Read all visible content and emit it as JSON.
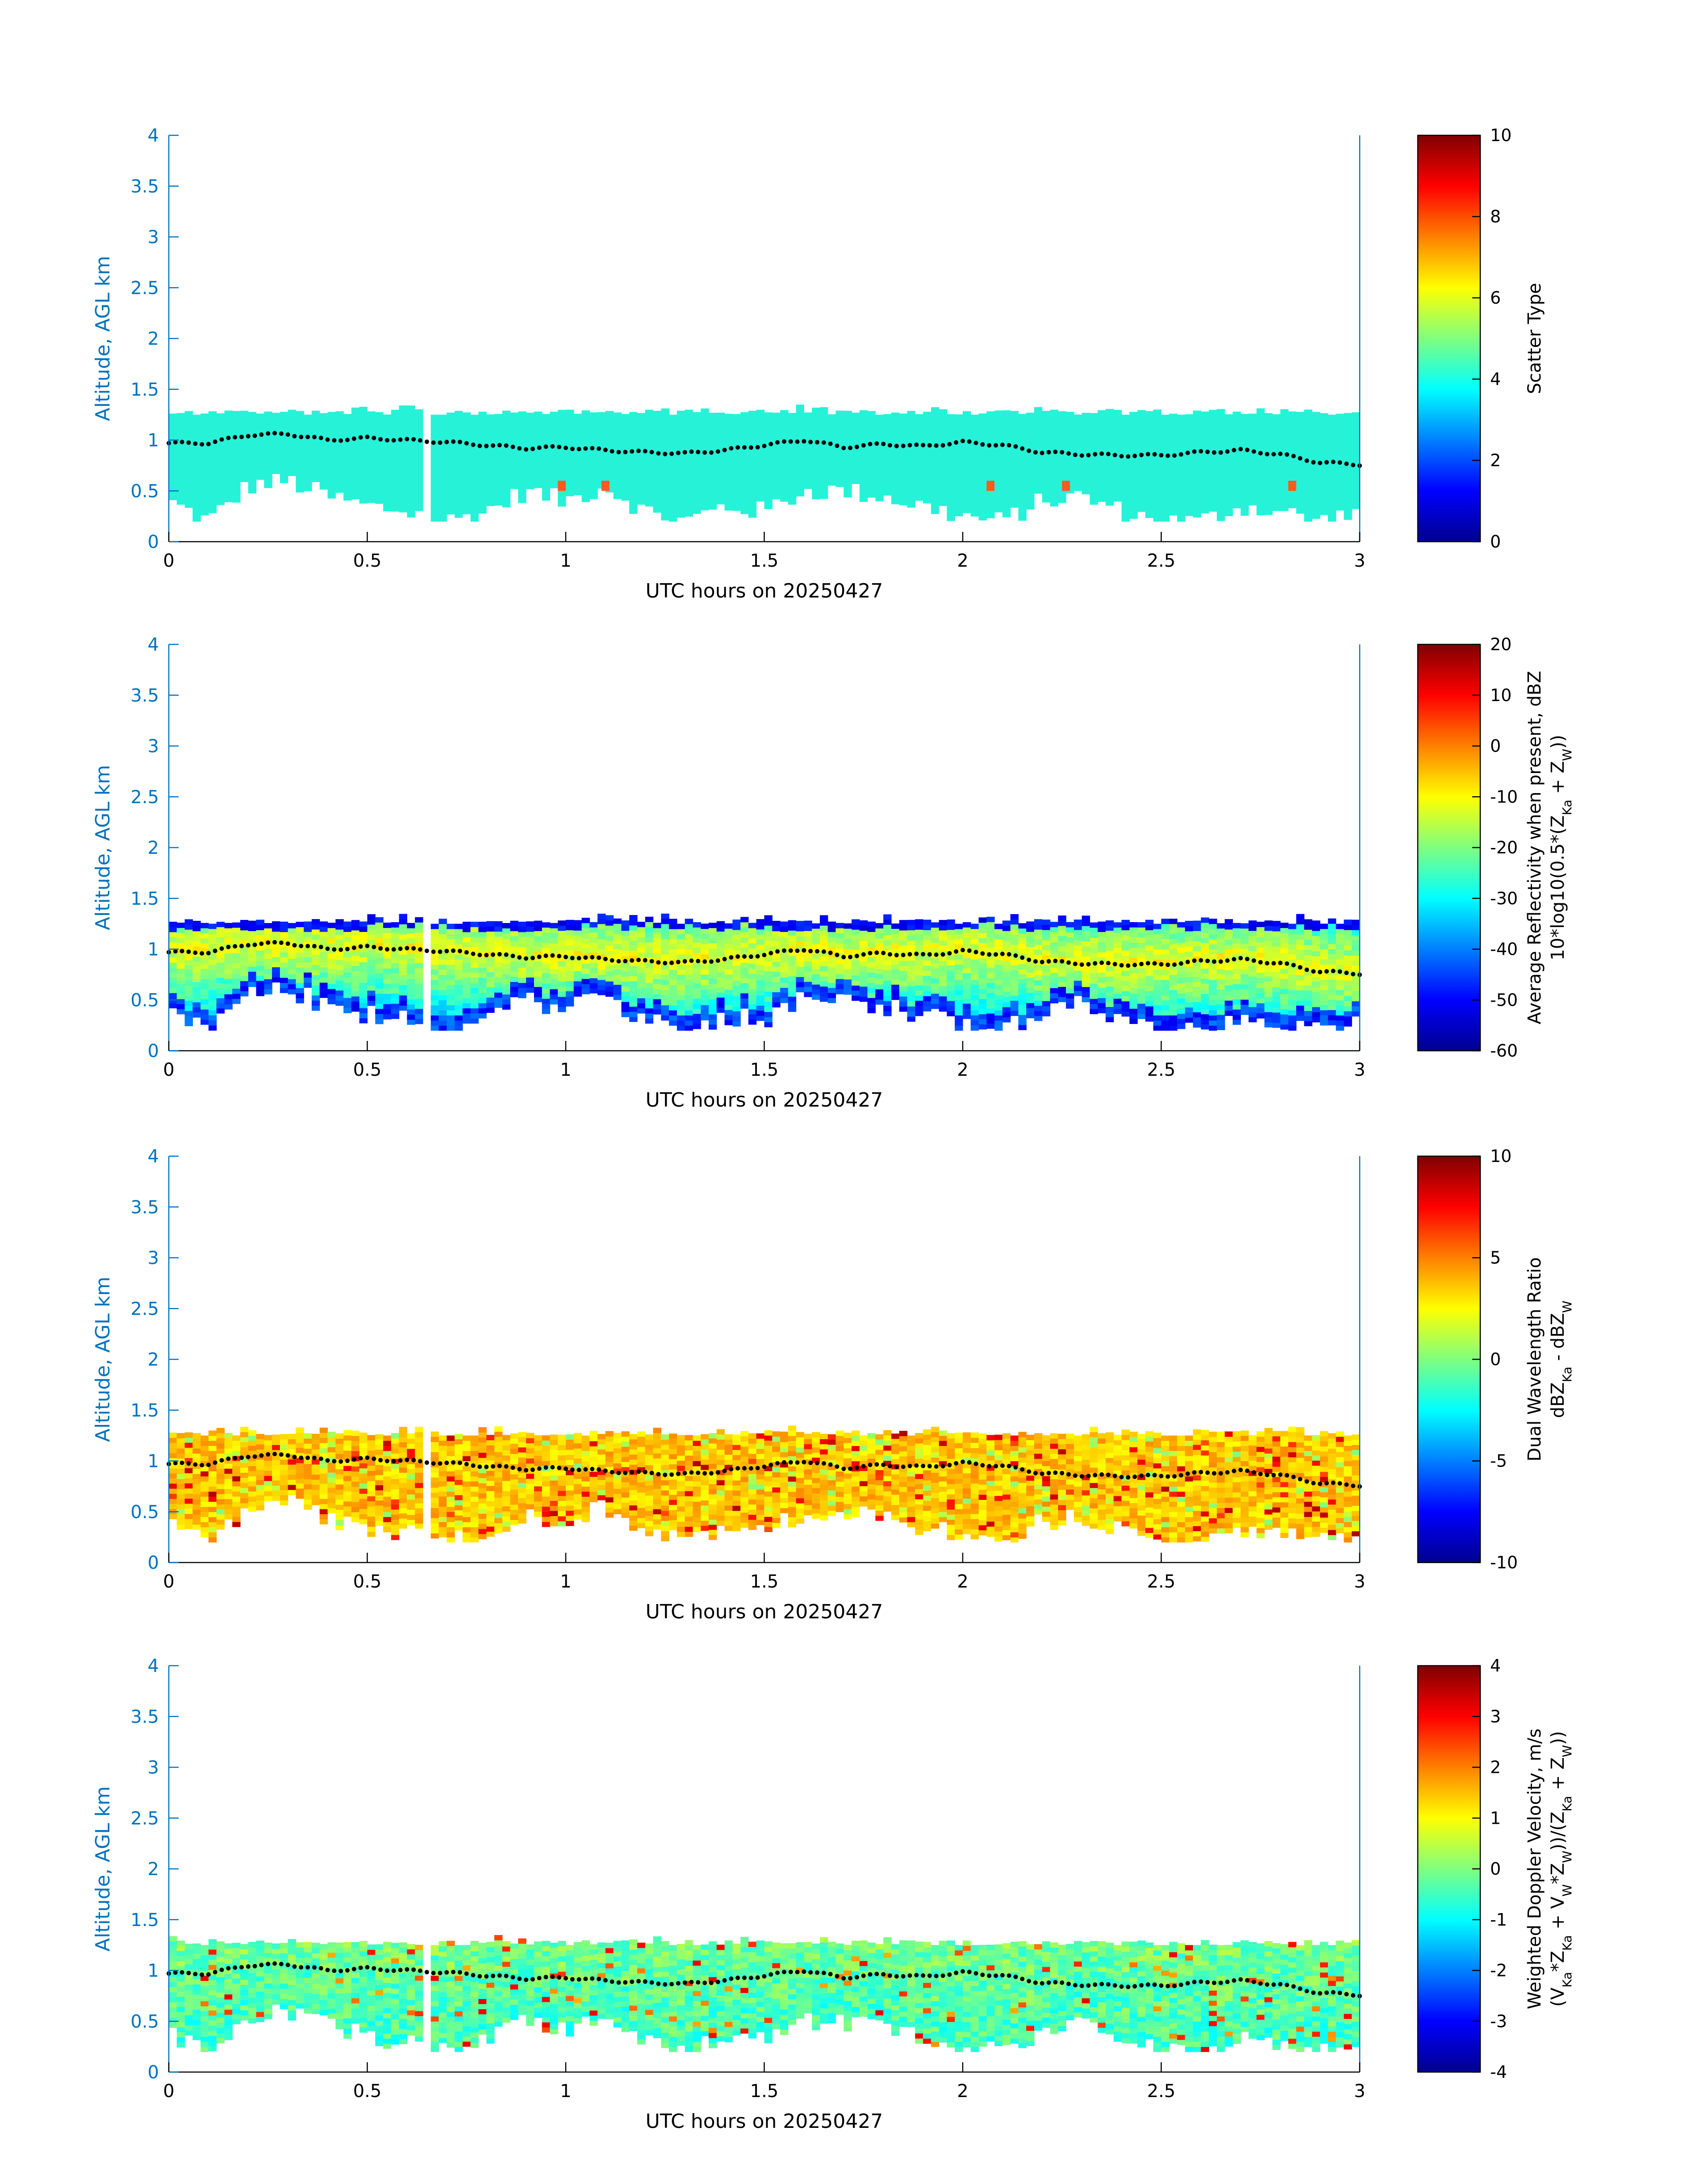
{
  "chart_data": [
    {
      "type": "heatmap",
      "ylabel": "Altitude, AGL km",
      "xlabel": "UTC hours on 20250427",
      "xlim": [
        0,
        3
      ],
      "ylim": [
        0,
        4
      ],
      "x_ticks": [
        "0",
        "0.5",
        "1",
        "1.5",
        "2",
        "2.5",
        "3"
      ],
      "y_ticks": [
        "0",
        "0.5",
        "1",
        "1.5",
        "2",
        "2.5",
        "3",
        "3.5",
        "4"
      ],
      "colorbar": {
        "label_lines": [
          "Scatter Type"
        ],
        "range": [
          0,
          10
        ],
        "ticks": [
          "0",
          "2",
          "4",
          "6",
          "8",
          "10"
        ]
      },
      "field": "scatter-type",
      "layer_top_km": 1.25,
      "layer_base_km": [
        0.4,
        0.2,
        0.55,
        0.6,
        0.45,
        0.35,
        0.3,
        0.2,
        0.3,
        0.5,
        0.4,
        0.55,
        0.3,
        0.2,
        0.35,
        0.3,
        0.5,
        0.5,
        0.45,
        0.35,
        0.25,
        0.2,
        0.4,
        0.45,
        0.3,
        0.2,
        0.2,
        0.35,
        0.3,
        0.2,
        0.3
      ],
      "cloud_base_km": [
        0.97,
        0.97,
        1.05,
        1.06,
        1.0,
        1.02,
        1.0,
        0.98,
        0.95,
        0.92,
        0.93,
        0.9,
        0.88,
        0.87,
        0.9,
        0.95,
        1.0,
        0.93,
        0.96,
        0.94,
        0.98,
        0.95,
        0.88,
        0.86,
        0.85,
        0.85,
        0.88,
        0.9,
        0.86,
        0.78,
        0.76
      ]
    },
    {
      "type": "heatmap",
      "ylabel": "Altitude, AGL km",
      "xlabel": "UTC hours on 20250427",
      "xlim": [
        0,
        3
      ],
      "ylim": [
        0,
        4
      ],
      "x_ticks": [
        "0",
        "0.5",
        "1",
        "1.5",
        "2",
        "2.5",
        "3"
      ],
      "y_ticks": [
        "0",
        "0.5",
        "1",
        "1.5",
        "2",
        "2.5",
        "3",
        "3.5",
        "4"
      ],
      "colorbar": {
        "label_lines": [
          "Average Reflectivity when present, dBZ",
          "10*log10(0.5*(Z_Ka + Z_W))"
        ],
        "range": [
          -60,
          20
        ],
        "ticks": [
          "-60",
          "-50",
          "-40",
          "-30",
          "-20",
          "-10",
          "0",
          "10",
          "20"
        ]
      },
      "field": "reflectivity",
      "layer_top_km": 1.25,
      "layer_base_km": [
        0.4,
        0.2,
        0.55,
        0.6,
        0.45,
        0.35,
        0.3,
        0.2,
        0.3,
        0.5,
        0.4,
        0.55,
        0.3,
        0.2,
        0.35,
        0.3,
        0.5,
        0.5,
        0.45,
        0.35,
        0.25,
        0.2,
        0.4,
        0.45,
        0.3,
        0.2,
        0.2,
        0.35,
        0.3,
        0.2,
        0.3
      ],
      "cloud_base_km": [
        0.97,
        0.97,
        1.05,
        1.06,
        1.0,
        1.02,
        1.0,
        0.98,
        0.95,
        0.92,
        0.93,
        0.9,
        0.88,
        0.87,
        0.9,
        0.95,
        1.0,
        0.93,
        0.96,
        0.94,
        0.98,
        0.95,
        0.88,
        0.86,
        0.85,
        0.85,
        0.88,
        0.9,
        0.86,
        0.78,
        0.76
      ]
    },
    {
      "type": "heatmap",
      "ylabel": "Altitude, AGL km",
      "xlabel": "UTC hours on 20250427",
      "xlim": [
        0,
        3
      ],
      "ylim": [
        0,
        4
      ],
      "x_ticks": [
        "0",
        "0.5",
        "1",
        "1.5",
        "2",
        "2.5",
        "3"
      ],
      "y_ticks": [
        "0",
        "0.5",
        "1",
        "1.5",
        "2",
        "2.5",
        "3",
        "3.5",
        "4"
      ],
      "colorbar": {
        "label_lines": [
          "Dual Wavelength Ratio",
          "dBZ_Ka - dBZ_W"
        ],
        "range": [
          -10,
          10
        ],
        "ticks": [
          "-10",
          "-5",
          "0",
          "5",
          "10"
        ]
      },
      "field": "dwr",
      "layer_top_km": 1.25,
      "layer_base_km": [
        0.4,
        0.2,
        0.55,
        0.6,
        0.45,
        0.35,
        0.3,
        0.2,
        0.3,
        0.5,
        0.4,
        0.55,
        0.3,
        0.2,
        0.35,
        0.3,
        0.5,
        0.5,
        0.45,
        0.35,
        0.25,
        0.2,
        0.4,
        0.45,
        0.3,
        0.2,
        0.2,
        0.35,
        0.3,
        0.2,
        0.3
      ],
      "cloud_base_km": [
        0.97,
        0.97,
        1.05,
        1.06,
        1.0,
        1.02,
        1.0,
        0.98,
        0.95,
        0.92,
        0.93,
        0.9,
        0.88,
        0.87,
        0.9,
        0.95,
        1.0,
        0.93,
        0.96,
        0.94,
        0.98,
        0.95,
        0.88,
        0.86,
        0.85,
        0.85,
        0.88,
        0.9,
        0.86,
        0.78,
        0.76
      ]
    },
    {
      "type": "heatmap",
      "ylabel": "Altitude, AGL km",
      "xlabel": "UTC hours on 20250427",
      "xlim": [
        0,
        3
      ],
      "ylim": [
        0,
        4
      ],
      "x_ticks": [
        "0",
        "0.5",
        "1",
        "1.5",
        "2",
        "2.5",
        "3"
      ],
      "y_ticks": [
        "0",
        "0.5",
        "1",
        "1.5",
        "2",
        "2.5",
        "3",
        "3.5",
        "4"
      ],
      "colorbar": {
        "label_lines": [
          "Weighted Doppler Velocity, m/s",
          "(V_Ka*Z_Ka + V_W*Z_W))/(Z_Ka + Z_W))"
        ],
        "range": [
          -4,
          4
        ],
        "ticks": [
          "-4",
          "-3",
          "-2",
          "-1",
          "0",
          "1",
          "2",
          "3",
          "4"
        ]
      },
      "field": "velocity",
      "layer_top_km": 1.25,
      "layer_base_km": [
        0.4,
        0.2,
        0.55,
        0.6,
        0.45,
        0.35,
        0.3,
        0.2,
        0.3,
        0.5,
        0.4,
        0.55,
        0.3,
        0.2,
        0.35,
        0.3,
        0.5,
        0.5,
        0.45,
        0.35,
        0.25,
        0.2,
        0.4,
        0.45,
        0.3,
        0.2,
        0.2,
        0.35,
        0.3,
        0.2,
        0.3
      ],
      "cloud_base_km": [
        0.97,
        0.97,
        1.05,
        1.06,
        1.0,
        1.02,
        1.0,
        0.98,
        0.95,
        0.92,
        0.93,
        0.9,
        0.88,
        0.87,
        0.9,
        0.95,
        1.0,
        0.93,
        0.96,
        0.94,
        0.98,
        0.95,
        0.88,
        0.86,
        0.85,
        0.85,
        0.88,
        0.9,
        0.86,
        0.78,
        0.76
      ]
    }
  ],
  "colors": {
    "axis": "#0072bd",
    "scatter_fill": "#26f2d8",
    "marker": "#000000"
  }
}
